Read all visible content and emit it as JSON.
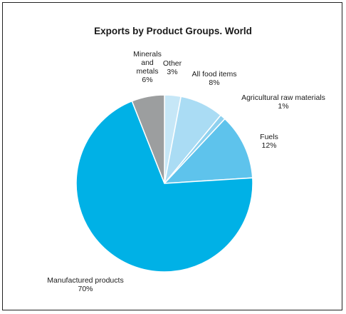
{
  "chart_data": {
    "type": "pie",
    "title": "Exports by Product Groups. World",
    "slices": [
      {
        "name": "Other",
        "value": 3,
        "label": "Other",
        "pct": "3%",
        "color": "#c6e7f7"
      },
      {
        "name": "All food items",
        "value": 8,
        "label": "All food items",
        "pct": "8%",
        "color": "#aadcf4"
      },
      {
        "name": "Agricultural raw materials",
        "value": 1,
        "label": "Agricultural raw materials",
        "pct": "1%",
        "color": "#8ed1ef"
      },
      {
        "name": "Fuels",
        "value": 12,
        "label": "Fuels",
        "pct": "12%",
        "color": "#5ec3ec"
      },
      {
        "name": "Manufactured products",
        "value": 70,
        "label": "Manufactured products",
        "pct": "70%",
        "color": "#00b1e6"
      },
      {
        "name": "Minerals and metals",
        "value": 6,
        "label": "Minerals and metals",
        "pct": "6%",
        "color": "#9c9e9f"
      }
    ],
    "legend": "none"
  }
}
